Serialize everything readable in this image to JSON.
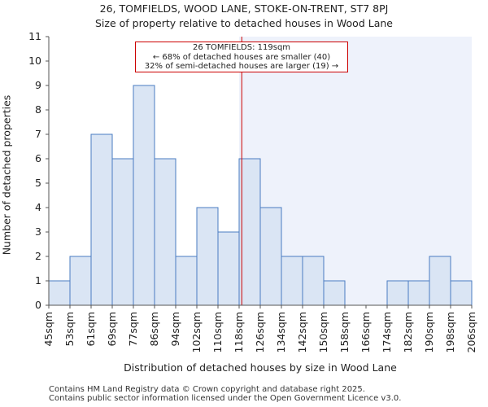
{
  "header": {
    "title_line1": "26, TOMFIELDS, WOOD LANE, STOKE-ON-TRENT, ST7 8PJ",
    "title_line2": "Size of property relative to detached houses in Wood Lane"
  },
  "footer": {
    "line1": "Contains HM Land Registry data © Crown copyright and database right 2025.",
    "line2": "Contains public sector information licensed under the Open Government Licence v3.0."
  },
  "annotation": {
    "line1": "26 TOMFIELDS: 119sqm",
    "line2": "← 68% of detached houses are smaller (40)",
    "line3": "32% of semi-detached houses are larger (19) →"
  },
  "colors": {
    "bar_fill": "#dae5f4",
    "bar_stroke": "#4a7cc2",
    "highlight_bg": "#eef2fb",
    "marker_line": "#cc0000"
  },
  "chart_data": {
    "type": "bar",
    "title": "Size of property relative to detached houses in Wood Lane",
    "xlabel": "Distribution of detached houses by size in Wood Lane",
    "ylabel": "Number of detached properties",
    "bin_edges": [
      45,
      53,
      61,
      69,
      77,
      86,
      94,
      102,
      110,
      118,
      126,
      134,
      142,
      150,
      158,
      166,
      174,
      182,
      190,
      198,
      206
    ],
    "tick_labels": [
      "45sqm",
      "53sqm",
      "61sqm",
      "69sqm",
      "77sqm",
      "86sqm",
      "94sqm",
      "102sqm",
      "110sqm",
      "118sqm",
      "126sqm",
      "134sqm",
      "142sqm",
      "150sqm",
      "158sqm",
      "166sqm",
      "174sqm",
      "182sqm",
      "190sqm",
      "198sqm",
      "206sqm"
    ],
    "values": [
      1,
      2,
      7,
      6,
      9,
      6,
      2,
      4,
      3,
      6,
      4,
      2,
      2,
      1,
      0,
      0,
      1,
      1,
      2,
      1
    ],
    "ylim": [
      0,
      11
    ],
    "yticks": [
      0,
      1,
      2,
      3,
      4,
      5,
      6,
      7,
      8,
      9,
      10,
      11
    ],
    "marker_value": 119,
    "highlight_from_bin": 9
  }
}
